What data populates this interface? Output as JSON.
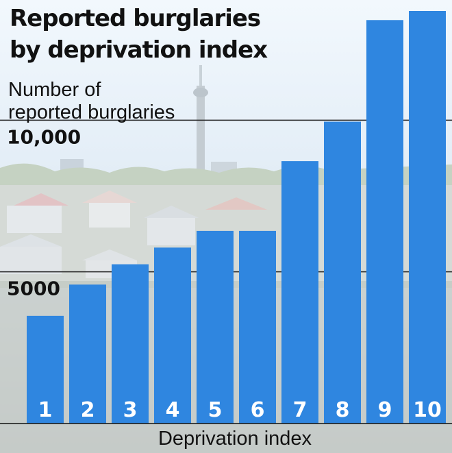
{
  "chart_data": {
    "type": "bar",
    "title_lines": [
      "Reported burglaries",
      "by deprivation index"
    ],
    "ylabel_lines": [
      "Number of",
      "reported burglaries"
    ],
    "xlabel": "Deprivation index",
    "categories": [
      "1",
      "2",
      "3",
      "4",
      "5",
      "6",
      "7",
      "8",
      "9",
      "10"
    ],
    "values": [
      3550,
      4580,
      5250,
      5800,
      6350,
      6350,
      8650,
      9950,
      13300,
      13600
    ],
    "yticks": [
      5000,
      10000
    ],
    "ytick_labels": [
      "5000",
      "10,000"
    ],
    "ylim": [
      0,
      13600
    ],
    "grid": true,
    "bar_color": "#2f86e0",
    "background": "city skyline photo"
  }
}
